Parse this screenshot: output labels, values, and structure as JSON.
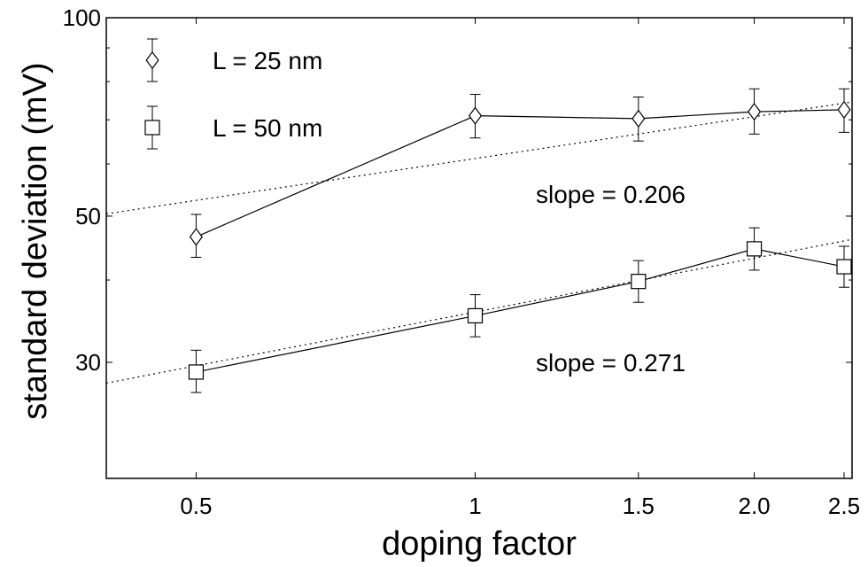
{
  "chart_data": {
    "type": "line",
    "xlabel": "doping factor",
    "ylabel": "standard deviation (mV)",
    "x_scale": "log",
    "y_scale": "log",
    "xlim": [
      0.4,
      2.55
    ],
    "ylim": [
      20,
      100
    ],
    "grid": false,
    "legend_placement": "top-left",
    "x_ticks": [
      {
        "value": 0.5,
        "label": "0.5"
      },
      {
        "value": 1,
        "label": "1"
      },
      {
        "value": 1.5,
        "label": "1.5"
      },
      {
        "value": 2.0,
        "label": "2.0"
      },
      {
        "value": 2.5,
        "label": "2.5"
      }
    ],
    "y_ticks": [
      {
        "value": 30,
        "label": "30"
      },
      {
        "value": 50,
        "label": "50"
      },
      {
        "value": 100,
        "label": "100"
      }
    ],
    "series": [
      {
        "name": "L = 25 nm",
        "marker": "diamond",
        "points": [
          {
            "x": 0.5,
            "y": 46.5,
            "err_low": 43.3,
            "err_high": 50.3
          },
          {
            "x": 1,
            "y": 71.0,
            "err_low": 65.7,
            "err_high": 76.5
          },
          {
            "x": 1.5,
            "y": 70.3,
            "err_low": 65.0,
            "err_high": 75.8
          },
          {
            "x": 2.0,
            "y": 72.0,
            "err_low": 66.6,
            "err_high": 78.0
          },
          {
            "x": 2.5,
            "y": 72.5,
            "err_low": 67.0,
            "err_high": 78.0
          }
        ]
      },
      {
        "name": "L = 50 nm",
        "marker": "square",
        "points": [
          {
            "x": 0.5,
            "y": 29.0,
            "err_low": 27.0,
            "err_high": 31.3
          },
          {
            "x": 1,
            "y": 35.3,
            "err_low": 32.8,
            "err_high": 38.0
          },
          {
            "x": 1.5,
            "y": 39.8,
            "err_low": 37.0,
            "err_high": 42.8
          },
          {
            "x": 2.0,
            "y": 44.6,
            "err_low": 41.4,
            "err_high": 48.0
          },
          {
            "x": 2.5,
            "y": 41.9,
            "err_low": 39.0,
            "err_high": 45.0
          }
        ]
      }
    ],
    "fit_lines": [
      {
        "label": "slope = 0.206",
        "slope": 0.206,
        "points": [
          {
            "x": 0.4,
            "y": 50.4
          },
          {
            "x": 2.55,
            "y": 74.5
          }
        ],
        "annotation_at": {
          "x": 1.4,
          "y": 54
        }
      },
      {
        "label": "slope = 0.271",
        "slope": 0.271,
        "points": [
          {
            "x": 0.4,
            "y": 27.9
          },
          {
            "x": 2.55,
            "y": 46.1
          }
        ],
        "annotation_at": {
          "x": 1.4,
          "y": 30
        }
      }
    ]
  }
}
